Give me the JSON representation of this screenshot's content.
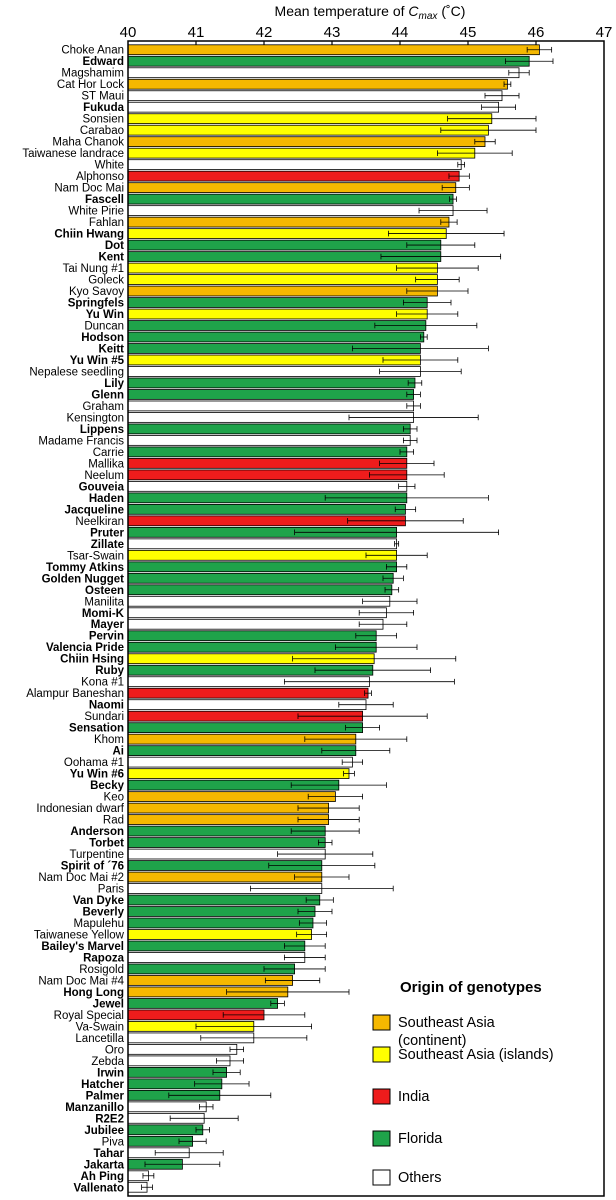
{
  "chart_data": {
    "type": "bar",
    "orientation": "horizontal",
    "xlabel_prefix": "Mean temperature of ",
    "xlabel_var": "C",
    "xlabel_sub": "max",
    "xlabel_suffix": " (˚C)",
    "xlim": [
      40,
      47
    ],
    "xticks": [
      "40",
      "41",
      "42",
      "43",
      "44",
      "45",
      "46",
      "47"
    ],
    "legend": {
      "title": "Origin of genotypes",
      "placement": "bottom-right",
      "entries": [
        {
          "key": "SEA_C",
          "line1": "Southeast Asia",
          "line2": "(continent)"
        },
        {
          "key": "SEA_I",
          "line1": "Southeast Asia (islands)",
          "line2": ""
        },
        {
          "key": "IND",
          "line1": "India",
          "line2": ""
        },
        {
          "key": "FL",
          "line1": "Florida",
          "line2": ""
        },
        {
          "key": "OTH",
          "line1": "Others",
          "line2": ""
        }
      ]
    },
    "colors": {
      "SEA_C": "#f5b800",
      "SEA_I": "#ffff00",
      "IND": "#ee1c1c",
      "FL": "#1fa34a",
      "OTH": "#ffffff"
    },
    "bars": [
      {
        "label": "Choke Anan",
        "value": 46.05,
        "err": 0.18,
        "origin": "SEA_C",
        "bold": false
      },
      {
        "label": "Edward",
        "value": 45.9,
        "err": 0.35,
        "origin": "FL",
        "bold": true
      },
      {
        "label": "Magshamim",
        "value": 45.75,
        "err": 0.15,
        "origin": "OTH",
        "bold": false
      },
      {
        "label": "Cat Hor Lock",
        "value": 45.58,
        "err": 0.05,
        "origin": "SEA_C",
        "bold": false
      },
      {
        "label": "ST Maui",
        "value": 45.5,
        "err": 0.25,
        "origin": "OTH",
        "bold": false
      },
      {
        "label": "Fukuda",
        "value": 45.45,
        "err": 0.25,
        "origin": "OTH",
        "bold": true
      },
      {
        "label": "Sonsien",
        "value": 45.35,
        "err": 0.65,
        "origin": "SEA_I",
        "bold": false
      },
      {
        "label": "Carabao",
        "value": 45.3,
        "err": 0.7,
        "origin": "SEA_I",
        "bold": false
      },
      {
        "label": "Maha Chanok",
        "value": 45.25,
        "err": 0.15,
        "origin": "SEA_C",
        "bold": false
      },
      {
        "label": "Taiwanese landrace",
        "value": 45.1,
        "err": 0.55,
        "origin": "SEA_I",
        "bold": false
      },
      {
        "label": "White",
        "value": 44.9,
        "err": 0.05,
        "origin": "OTH",
        "bold": false
      },
      {
        "label": "Alphonso",
        "value": 44.87,
        "err": 0.15,
        "origin": "IND",
        "bold": false
      },
      {
        "label": "Nam Doc Mai",
        "value": 44.82,
        "err": 0.2,
        "origin": "SEA_C",
        "bold": false
      },
      {
        "label": "Fascell",
        "value": 44.78,
        "err": 0.05,
        "origin": "FL",
        "bold": true
      },
      {
        "label": "White Pirie",
        "value": 44.78,
        "err": 0.5,
        "origin": "OTH",
        "bold": false
      },
      {
        "label": "Fahlan",
        "value": 44.72,
        "err": 0.12,
        "origin": "SEA_C",
        "bold": false
      },
      {
        "label": "Chiin Hwang",
        "value": 44.68,
        "err": 0.85,
        "origin": "SEA_I",
        "bold": true
      },
      {
        "label": "Dot",
        "value": 44.6,
        "err": 0.5,
        "origin": "FL",
        "bold": true
      },
      {
        "label": "Kent",
        "value": 44.6,
        "err": 0.88,
        "origin": "FL",
        "bold": true
      },
      {
        "label": "Tai Nung #1",
        "value": 44.55,
        "err": 0.6,
        "origin": "SEA_I",
        "bold": false
      },
      {
        "label": "Goleck",
        "value": 44.55,
        "err": 0.32,
        "origin": "SEA_I",
        "bold": false
      },
      {
        "label": "Kyo Savoy",
        "value": 44.55,
        "err": 0.45,
        "origin": "SEA_C",
        "bold": false
      },
      {
        "label": "Springfels",
        "value": 44.4,
        "err": 0.35,
        "origin": "FL",
        "bold": true
      },
      {
        "label": "Yu Win",
        "value": 44.4,
        "err": 0.45,
        "origin": "SEA_I",
        "bold": true
      },
      {
        "label": "Duncan",
        "value": 44.38,
        "err": 0.75,
        "origin": "FL",
        "bold": false
      },
      {
        "label": "Hodson",
        "value": 44.35,
        "err": 0.05,
        "origin": "FL",
        "bold": true
      },
      {
        "label": "Keitt",
        "value": 44.3,
        "err": 1.0,
        "origin": "FL",
        "bold": true
      },
      {
        "label": "Yu Win #5",
        "value": 44.3,
        "err": 0.55,
        "origin": "SEA_I",
        "bold": true
      },
      {
        "label": "Nepalese seedling",
        "value": 44.3,
        "err": 0.6,
        "origin": "OTH",
        "bold": false
      },
      {
        "label": "Lily",
        "value": 44.22,
        "err": 0.1,
        "origin": "FL",
        "bold": true
      },
      {
        "label": "Glenn",
        "value": 44.2,
        "err": 0.1,
        "origin": "FL",
        "bold": true
      },
      {
        "label": "Graham",
        "value": 44.2,
        "err": 0.1,
        "origin": "OTH",
        "bold": false
      },
      {
        "label": "Kensington",
        "value": 44.2,
        "err": 0.95,
        "origin": "OTH",
        "bold": false
      },
      {
        "label": "Lippens",
        "value": 44.15,
        "err": 0.1,
        "origin": "FL",
        "bold": true
      },
      {
        "label": "Madame Francis",
        "value": 44.15,
        "err": 0.1,
        "origin": "OTH",
        "bold": false
      },
      {
        "label": "Carrie",
        "value": 44.1,
        "err": 0.1,
        "origin": "FL",
        "bold": false
      },
      {
        "label": "Mallika",
        "value": 44.1,
        "err": 0.4,
        "origin": "IND",
        "bold": false
      },
      {
        "label": "Neelum",
        "value": 44.1,
        "err": 0.55,
        "origin": "IND",
        "bold": false
      },
      {
        "label": "Gouveia",
        "value": 44.1,
        "err": 0.12,
        "origin": "OTH",
        "bold": true
      },
      {
        "label": "Haden",
        "value": 44.1,
        "err": 1.2,
        "origin": "FL",
        "bold": true
      },
      {
        "label": "Jacqueline",
        "value": 44.08,
        "err": 0.15,
        "origin": "FL",
        "bold": true
      },
      {
        "label": "Neelkiran",
        "value": 44.08,
        "err": 0.85,
        "origin": "IND",
        "bold": false
      },
      {
        "label": "Pruter",
        "value": 43.95,
        "err": 1.5,
        "origin": "FL",
        "bold": true
      },
      {
        "label": "Zillate",
        "value": 43.95,
        "err": 0.03,
        "origin": "OTH",
        "bold": true
      },
      {
        "label": "Tsar-Swain",
        "value": 43.95,
        "err": 0.45,
        "origin": "SEA_I",
        "bold": false
      },
      {
        "label": "Tommy Atkins",
        "value": 43.95,
        "err": 0.15,
        "origin": "FL",
        "bold": true
      },
      {
        "label": "Golden Nugget",
        "value": 43.9,
        "err": 0.15,
        "origin": "FL",
        "bold": true
      },
      {
        "label": "Osteen",
        "value": 43.88,
        "err": 0.1,
        "origin": "FL",
        "bold": true
      },
      {
        "label": "Manilita",
        "value": 43.85,
        "err": 0.4,
        "origin": "OTH",
        "bold": false
      },
      {
        "label": "Momi-K",
        "value": 43.8,
        "err": 0.4,
        "origin": "OTH",
        "bold": true
      },
      {
        "label": "Mayer",
        "value": 43.75,
        "err": 0.35,
        "origin": "OTH",
        "bold": true
      },
      {
        "label": "Pervin",
        "value": 43.65,
        "err": 0.3,
        "origin": "FL",
        "bold": true
      },
      {
        "label": "Valencia Pride",
        "value": 43.65,
        "err": 0.6,
        "origin": "FL",
        "bold": true
      },
      {
        "label": "Chiin Hsing",
        "value": 43.62,
        "err": 1.2,
        "origin": "SEA_I",
        "bold": true
      },
      {
        "label": "Ruby",
        "value": 43.6,
        "err": 0.85,
        "origin": "FL",
        "bold": true
      },
      {
        "label": "Kona #1",
        "value": 43.55,
        "err": 1.25,
        "origin": "OTH",
        "bold": false
      },
      {
        "label": "Alampur Baneshan",
        "value": 43.53,
        "err": 0.05,
        "origin": "IND",
        "bold": false
      },
      {
        "label": "Naomi",
        "value": 43.5,
        "err": 0.4,
        "origin": "OTH",
        "bold": true
      },
      {
        "label": "Sundari",
        "value": 43.45,
        "err": 0.95,
        "origin": "IND",
        "bold": false
      },
      {
        "label": "Sensation",
        "value": 43.45,
        "err": 0.25,
        "origin": "FL",
        "bold": true
      },
      {
        "label": "Khom",
        "value": 43.35,
        "err": 0.75,
        "origin": "SEA_C",
        "bold": false
      },
      {
        "label": "Ai",
        "value": 43.35,
        "err": 0.5,
        "origin": "FL",
        "bold": true
      },
      {
        "label": "Oohama #1",
        "value": 43.3,
        "err": 0.15,
        "origin": "OTH",
        "bold": false
      },
      {
        "label": "Yu Win #6",
        "value": 43.25,
        "err": 0.08,
        "origin": "SEA_I",
        "bold": true
      },
      {
        "label": "Becky",
        "value": 43.1,
        "err": 0.7,
        "origin": "FL",
        "bold": true
      },
      {
        "label": "Keo",
        "value": 43.05,
        "err": 0.4,
        "origin": "SEA_C",
        "bold": false
      },
      {
        "label": "Indonesian dwarf",
        "value": 42.95,
        "err": 0.45,
        "origin": "SEA_C",
        "bold": false
      },
      {
        "label": "Rad",
        "value": 42.95,
        "err": 0.45,
        "origin": "SEA_C",
        "bold": false
      },
      {
        "label": "Anderson",
        "value": 42.9,
        "err": 0.5,
        "origin": "FL",
        "bold": true
      },
      {
        "label": "Torbet",
        "value": 42.9,
        "err": 0.1,
        "origin": "FL",
        "bold": true
      },
      {
        "label": "Turpentine",
        "value": 42.9,
        "err": 0.7,
        "origin": "OTH",
        "bold": false
      },
      {
        "label": "Spirit of ´76",
        "value": 42.85,
        "err": 0.78,
        "origin": "FL",
        "bold": true
      },
      {
        "label": "Nam Doc Mai #2",
        "value": 42.85,
        "err": 0.4,
        "origin": "SEA_C",
        "bold": false
      },
      {
        "label": "Paris",
        "value": 42.85,
        "err": 1.05,
        "origin": "OTH",
        "bold": false
      },
      {
        "label": "Van Dyke",
        "value": 42.82,
        "err": 0.2,
        "origin": "FL",
        "bold": true
      },
      {
        "label": "Beverly",
        "value": 42.75,
        "err": 0.25,
        "origin": "FL",
        "bold": true
      },
      {
        "label": "Mapulehu",
        "value": 42.72,
        "err": 0.2,
        "origin": "FL",
        "bold": false
      },
      {
        "label": "Taiwanese Yellow",
        "value": 42.7,
        "err": 0.22,
        "origin": "SEA_I",
        "bold": false
      },
      {
        "label": "Bailey's Marvel",
        "value": 42.6,
        "err": 0.3,
        "origin": "FL",
        "bold": true
      },
      {
        "label": "Rapoza",
        "value": 42.6,
        "err": 0.3,
        "origin": "OTH",
        "bold": true
      },
      {
        "label": "Rosigold",
        "value": 42.45,
        "err": 0.45,
        "origin": "FL",
        "bold": false
      },
      {
        "label": "Nam Doc Mai #4",
        "value": 42.42,
        "err": 0.4,
        "origin": "SEA_C",
        "bold": false
      },
      {
        "label": "Hong Long",
        "value": 42.35,
        "err": 0.9,
        "origin": "SEA_C",
        "bold": true
      },
      {
        "label": "Jewel",
        "value": 42.2,
        "err": 0.1,
        "origin": "FL",
        "bold": true
      },
      {
        "label": "Royal Special",
        "value": 42.0,
        "err": 0.6,
        "origin": "IND",
        "bold": false
      },
      {
        "label": "Va-Swain",
        "value": 41.85,
        "err": 0.85,
        "origin": "SEA_I",
        "bold": false
      },
      {
        "label": "Lancetilla",
        "value": 41.85,
        "err": 0.78,
        "origin": "OTH",
        "bold": false
      },
      {
        "label": "Oro",
        "value": 41.6,
        "err": 0.1,
        "origin": "OTH",
        "bold": false
      },
      {
        "label": "Zebda",
        "value": 41.5,
        "err": 0.2,
        "origin": "OTH",
        "bold": false
      },
      {
        "label": "Irwin",
        "value": 41.45,
        "err": 0.2,
        "origin": "FL",
        "bold": true
      },
      {
        "label": "Hatcher",
        "value": 41.38,
        "err": 0.4,
        "origin": "FL",
        "bold": true
      },
      {
        "label": "Palmer",
        "value": 41.35,
        "err": 0.75,
        "origin": "FL",
        "bold": true
      },
      {
        "label": "Manzanillo",
        "value": 41.15,
        "err": 0.1,
        "origin": "OTH",
        "bold": true
      },
      {
        "label": "R2E2",
        "value": 41.12,
        "err": 0.5,
        "origin": "OTH",
        "bold": true
      },
      {
        "label": "Jubilee",
        "value": 41.1,
        "err": 0.1,
        "origin": "FL",
        "bold": true
      },
      {
        "label": "Piva",
        "value": 40.95,
        "err": 0.2,
        "origin": "FL",
        "bold": false
      },
      {
        "label": "Tahar",
        "value": 40.9,
        "err": 0.5,
        "origin": "OTH",
        "bold": true
      },
      {
        "label": "Jakarta",
        "value": 40.8,
        "err": 0.55,
        "origin": "FL",
        "bold": true
      },
      {
        "label": "Ah Ping",
        "value": 40.3,
        "err": 0.08,
        "origin": "OTH",
        "bold": true
      },
      {
        "label": "Vallenato",
        "value": 40.28,
        "err": 0.08,
        "origin": "OTH",
        "bold": true
      }
    ]
  }
}
